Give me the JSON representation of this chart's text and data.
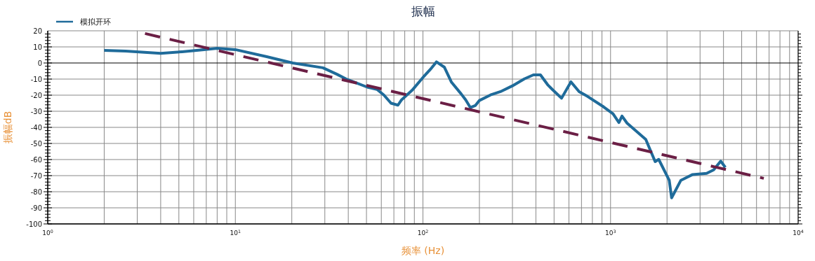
{
  "chart_data": {
    "type": "line",
    "title": "振幅",
    "xlabel": "频率 (Hz)",
    "ylabel": "振幅dB",
    "log": "x",
    "grid": true,
    "legend": "top left",
    "xlim": [
      1,
      10000
    ],
    "ylim": [
      -100,
      20
    ],
    "xticks": [
      {
        "value": 1,
        "label": "10$^{0}$"
      },
      {
        "value": 10,
        "label": "10$^{1}$"
      },
      {
        "value": 100,
        "label": "10$^{2}$"
      },
      {
        "value": 1000,
        "label": "10$^{3}$"
      },
      {
        "value": 10000,
        "label": "10$^{4}$"
      }
    ],
    "yticks": [
      -100,
      -90,
      -80,
      -70,
      -60,
      -50,
      -40,
      -30,
      -20,
      -10,
      0,
      10,
      20
    ],
    "series": [
      {
        "name": "模拟开环",
        "color": "#1f6b9a",
        "line_style": "solid",
        "x": [
          2,
          2.6,
          4,
          5.2,
          6.8,
          8,
          10,
          14.7,
          20.2,
          29.3,
          34.8,
          38.9,
          50.5,
          56.9,
          62,
          67.6,
          73.6,
          76.9,
          87.5,
          100,
          109.5,
          118,
          130,
          142,
          160,
          169,
          179,
          190,
          200,
          232,
          259,
          300,
          347,
          388,
          423,
          462,
          489,
          548,
          615,
          680,
          752,
          919,
          1031,
          1108,
          1151,
          1225,
          1541,
          1729,
          1806,
          2055,
          2116,
          2371,
          2740,
          3252,
          3546,
          3866,
          4093
        ],
        "values": [
          7.8,
          7.4,
          6,
          7,
          8.3,
          9.1,
          8.3,
          3.9,
          0,
          -3,
          -7,
          -9.9,
          -15,
          -16.4,
          -20,
          -25,
          -26.2,
          -22.9,
          -17,
          -9,
          -4,
          0.7,
          -2.6,
          -12,
          -19.3,
          -22.9,
          -27.7,
          -26.5,
          -23.3,
          -19.6,
          -17.8,
          -14.2,
          -9.9,
          -7.4,
          -7.4,
          -13.5,
          -16.4,
          -21.9,
          -11.7,
          -17.8,
          -20.7,
          -27.3,
          -31.6,
          -37,
          -33,
          -37.4,
          -47.5,
          -61.3,
          -59.9,
          -72.9,
          -83.8,
          -72.9,
          -69.3,
          -68.6,
          -66.4,
          -61,
          -64.9
        ]
      },
      {
        "type": "line",
        "color": "#6b1f45",
        "line_style": "dashed",
        "x": [
          3.3,
          6560
        ],
        "values": [
          18.3,
          -71.7
        ]
      }
    ]
  }
}
